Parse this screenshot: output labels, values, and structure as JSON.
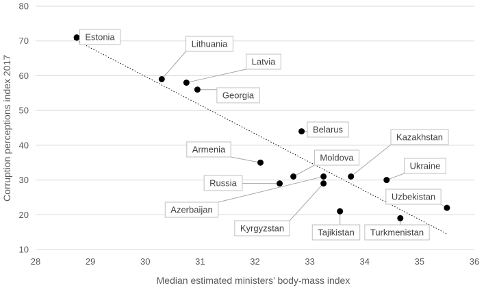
{
  "chart_data": {
    "type": "scatter",
    "title": "",
    "xlabel": "Median estimated ministers’ body-mass index",
    "ylabel": "Corruption perceptions index 2017",
    "xlim": [
      28,
      36
    ],
    "ylim": [
      10,
      80
    ],
    "x_ticks": [
      28,
      29,
      30,
      31,
      32,
      33,
      34,
      35,
      36
    ],
    "y_ticks": [
      10,
      20,
      30,
      40,
      50,
      60,
      70,
      80
    ],
    "grid": "horizontal",
    "trendline": {
      "style": "dotted",
      "x": [
        28.7,
        35.5
      ],
      "y": [
        70.5,
        14.5
      ]
    },
    "points": [
      {
        "label": "Estonia",
        "x": 28.75,
        "y": 71
      },
      {
        "label": "Lithuania",
        "x": 30.3,
        "y": 59
      },
      {
        "label": "Latvia",
        "x": 30.75,
        "y": 58
      },
      {
        "label": "Georgia",
        "x": 30.95,
        "y": 56
      },
      {
        "label": "Belarus",
        "x": 32.85,
        "y": 44
      },
      {
        "label": "Armenia",
        "x": 32.1,
        "y": 35
      },
      {
        "label": "Moldova",
        "x": 32.7,
        "y": 31
      },
      {
        "label": "Russia",
        "x": 32.45,
        "y": 29
      },
      {
        "label": "Azerbaijan",
        "x": 33.25,
        "y": 31
      },
      {
        "label": "Kyrgyzstan",
        "x": 33.25,
        "y": 29
      },
      {
        "label": "Kazakhstan",
        "x": 33.75,
        "y": 31
      },
      {
        "label": "Tajikistan",
        "x": 33.55,
        "y": 21
      },
      {
        "label": "Ukraine",
        "x": 34.4,
        "y": 30
      },
      {
        "label": "Uzbekistan",
        "x": 35.5,
        "y": 22
      },
      {
        "label": "Turkmenistan",
        "x": 34.65,
        "y": 19
      }
    ]
  }
}
